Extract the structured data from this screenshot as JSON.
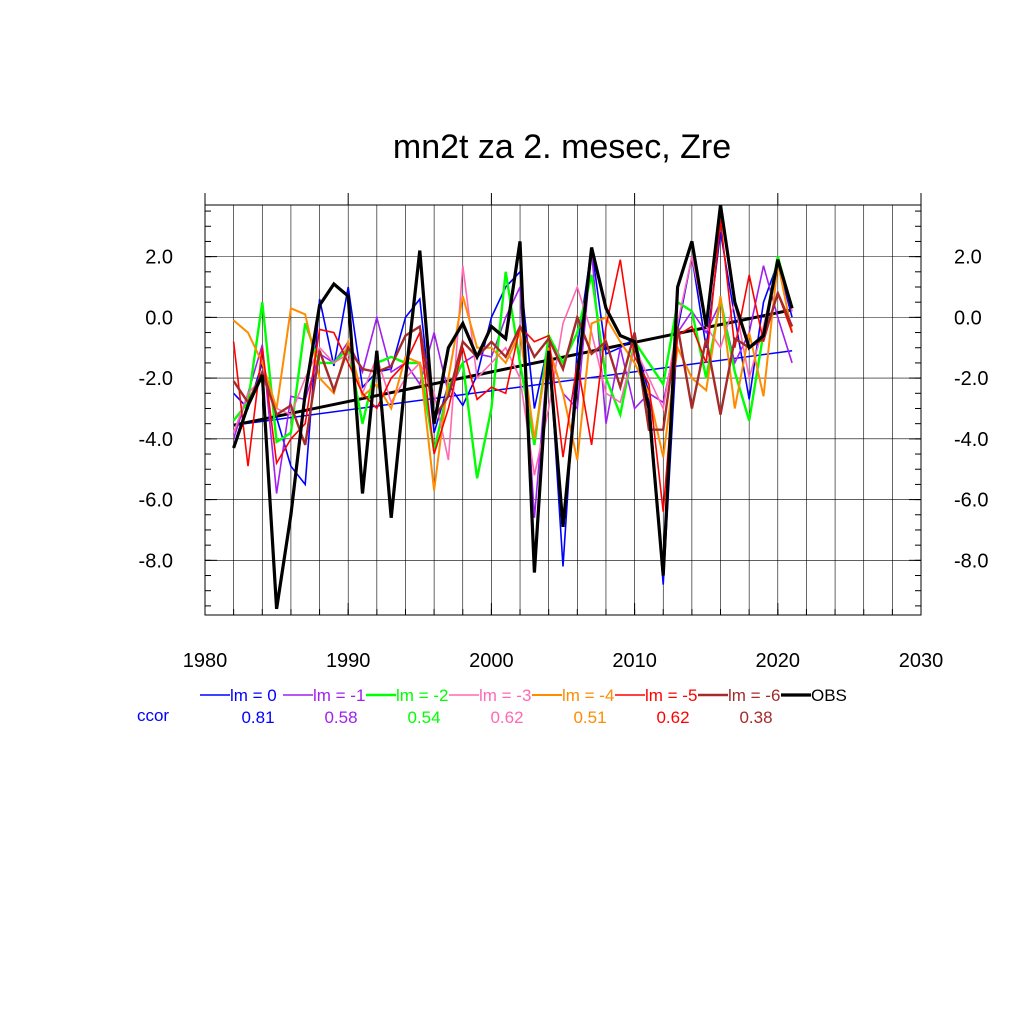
{
  "chart_data": {
    "type": "line",
    "title": "mn2t za 2. mesec, Zre",
    "xlabel": "",
    "ylabel": "",
    "xlim": [
      1980,
      2030
    ],
    "ylim": [
      -9.8,
      3.7
    ],
    "x_ticks": [
      1980,
      1990,
      2000,
      2010,
      2020,
      2030
    ],
    "x_tick_labels": [
      "1980",
      "1990",
      "2000",
      "2010",
      "2020",
      "2030"
    ],
    "y_ticks": [
      2.0,
      0.0,
      -2.0,
      -4.0,
      -6.0,
      -8.0
    ],
    "y_tick_labels": [
      "2.0",
      "0.0",
      "-2.0",
      "-4.0",
      "-6.0",
      "-8.0"
    ],
    "grid": true,
    "legend_position": "bottom",
    "ccor_label": "ccor",
    "x": [
      1982,
      1983,
      1984,
      1985,
      1986,
      1987,
      1988,
      1989,
      1990,
      1991,
      1992,
      1993,
      1994,
      1995,
      1996,
      1997,
      1998,
      1999,
      2000,
      2001,
      2002,
      2003,
      2004,
      2005,
      2006,
      2007,
      2008,
      2009,
      2010,
      2011,
      2012,
      2013,
      2014,
      2015,
      2016,
      2017,
      2018,
      2019,
      2020,
      2021
    ],
    "series": [
      {
        "name": "lm = 0",
        "ccor": "0.81",
        "color": "#0000ff",
        "width": 1.6,
        "values": [
          -2.5,
          -3.0,
          -1.5,
          -3.3,
          -4.9,
          -5.5,
          0.6,
          -1.6,
          1.0,
          -2.3,
          -1.8,
          -1.7,
          0.0,
          0.6,
          -3.8,
          -2.2,
          -2.9,
          -1.9,
          0.0,
          1.0,
          1.5,
          -3.0,
          -0.8,
          -8.2,
          -1.0,
          2.3,
          -1.2,
          -1.0,
          -0.7,
          -2.5,
          -8.8,
          -0.4,
          2.0,
          -1.0,
          2.8,
          0.0,
          -2.7,
          0.5,
          1.8,
          0.0
        ],
        "trend": [
          -3.55,
          -1.1
        ]
      },
      {
        "name": "lm = -1",
        "ccor": "0.58",
        "color": "#a020f0",
        "width": 1.6,
        "values": [
          -4.0,
          -2.5,
          -0.9,
          -5.8,
          -2.6,
          -2.7,
          -1.2,
          -1.5,
          -0.8,
          -1.8,
          0.0,
          -1.8,
          -1.5,
          -2.2,
          -0.5,
          -2.5,
          -1.5,
          -1.2,
          -1.3,
          0.0,
          1.0,
          -6.6,
          -1.0,
          -2.5,
          -3.0,
          2.2,
          -3.5,
          -1.0,
          -3.0,
          -2.5,
          -2.8,
          -0.5,
          0.2,
          -0.5,
          0.5,
          -1.5,
          -0.5,
          1.7,
          0.0,
          -1.5
        ],
        "trend": null
      },
      {
        "name": "lm = -2",
        "ccor": "0.54",
        "color": "#00ff00",
        "width": 2.4,
        "values": [
          -3.4,
          -2.8,
          0.5,
          -4.1,
          -3.8,
          -0.2,
          -1.5,
          -1.5,
          -1.0,
          -3.5,
          -1.5,
          -1.3,
          -1.5,
          -1.5,
          -4.4,
          -2.3,
          -1.5,
          -5.3,
          -3.0,
          1.5,
          -1.5,
          -4.2,
          -0.6,
          -1.5,
          -0.5,
          1.4,
          -2.0,
          -3.2,
          -0.8,
          -1.5,
          -2.2,
          0.5,
          0.2,
          -2.0,
          0.6,
          -1.8,
          -3.4,
          -0.5,
          2.0,
          0.3
        ],
        "trend": null
      },
      {
        "name": "lm = -3",
        "ccor": "0.62",
        "color": "#ff69b4",
        "width": 1.6,
        "values": [
          -3.8,
          -2.5,
          -2.0,
          -3.0,
          -3.2,
          -2.0,
          -1.0,
          -1.5,
          -1.2,
          -2.5,
          -1.3,
          -2.8,
          -2.0,
          -1.5,
          -2.5,
          -4.7,
          1.7,
          -2.0,
          -1.5,
          -1.0,
          -2.0,
          -5.2,
          -3.0,
          -0.2,
          1.0,
          -0.5,
          -2.5,
          -2.8,
          -1.0,
          -2.0,
          -3.0,
          -0.2,
          2.0,
          -0.3,
          -1.0,
          0.5,
          -2.0,
          -0.3,
          1.8,
          0.2
        ],
        "trend": null
      },
      {
        "name": "lm = -4",
        "ccor": "0.51",
        "color": "#ff8c00",
        "width": 2.0,
        "values": [
          -0.1,
          -0.5,
          -1.5,
          -3.0,
          0.3,
          0.1,
          -2.0,
          -2.5,
          -0.8,
          -2.6,
          -2.2,
          -3.0,
          -1.3,
          -1.5,
          -5.7,
          -2.0,
          0.7,
          -1.0,
          -1.0,
          -1.5,
          -0.5,
          -4.0,
          -1.0,
          -2.5,
          -4.7,
          -0.2,
          0.0,
          -0.8,
          -1.5,
          -2.5,
          -4.6,
          -1.0,
          -2.0,
          -2.4,
          0.7,
          -3.0,
          -0.5,
          -2.6,
          1.8,
          -0.5
        ],
        "trend": null
      },
      {
        "name": "lm = -5",
        "ccor": "0.62",
        "color": "#ff0000",
        "width": 1.6,
        "values": [
          -0.8,
          -4.9,
          -1.0,
          -4.8,
          -4.0,
          -3.5,
          -0.4,
          -0.5,
          -1.5,
          -2.5,
          -3.0,
          -2.0,
          -1.5,
          -0.5,
          -4.5,
          -3.0,
          -1.0,
          -2.7,
          -2.3,
          -2.5,
          -0.3,
          -0.8,
          -0.6,
          -4.6,
          -1.5,
          -4.2,
          -0.3,
          1.9,
          -1.3,
          -2.2,
          -6.4,
          -0.6,
          -0.3,
          -1.5,
          3.2,
          -1.0,
          1.4,
          -0.8,
          0.8,
          -0.5
        ],
        "trend": null
      },
      {
        "name": "lm = -6",
        "ccor": "0.38",
        "color": "#a52a2a",
        "width": 2.4,
        "values": [
          -2.1,
          -2.8,
          -1.8,
          -3.2,
          -2.9,
          -4.2,
          -1.1,
          -2.4,
          -1.0,
          -1.7,
          -1.8,
          -1.6,
          -0.6,
          -0.3,
          -3.3,
          -2.6,
          -0.8,
          -1.3,
          -0.8,
          -1.3,
          -0.3,
          -1.3,
          -0.7,
          -1.7,
          0.0,
          -1.2,
          -0.8,
          -2.3,
          -0.5,
          -3.7,
          -3.7,
          -0.3,
          -3.0,
          -0.7,
          -3.2,
          -0.7,
          -1.0,
          -0.7,
          0.8,
          -0.3
        ],
        "trend": null
      },
      {
        "name": "OBS",
        "ccor": "",
        "color": "#000000",
        "width": 3.2,
        "values": [
          -4.3,
          -2.9,
          -1.9,
          -9.6,
          -6.5,
          -2.5,
          0.4,
          1.1,
          0.7,
          -5.8,
          -1.1,
          -6.6,
          -2.0,
          2.2,
          -3.5,
          -1.0,
          -0.2,
          -1.3,
          -0.3,
          -0.7,
          2.5,
          -8.4,
          -1.1,
          -6.9,
          -2.0,
          2.3,
          0.3,
          -0.6,
          -0.8,
          -3.0,
          -8.5,
          1.0,
          2.5,
          -0.3,
          3.7,
          0.5,
          -1.0,
          -0.6,
          1.9,
          0.3
        ],
        "trend": [
          -3.55,
          0.25
        ]
      }
    ]
  }
}
